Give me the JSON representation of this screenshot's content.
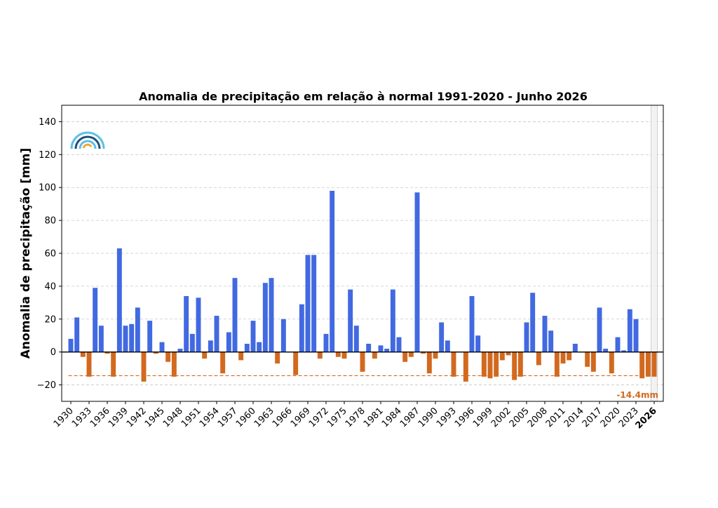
{
  "chart_data": {
    "type": "bar",
    "title": "Anomalia de precipitação em relação à normal 1991-2020 - Junho 2026",
    "ylabel": "Anomalia de precipitação [mm]",
    "xlabel": "",
    "ylim": [
      -30,
      150
    ],
    "yticks": [
      -20,
      0,
      20,
      40,
      60,
      80,
      100,
      120,
      140
    ],
    "xlim": [
      1928.5,
      2027.5
    ],
    "xticks": [
      1930,
      1933,
      1936,
      1939,
      1942,
      1945,
      1948,
      1951,
      1954,
      1957,
      1960,
      1963,
      1966,
      1969,
      1972,
      1975,
      1978,
      1981,
      1984,
      1987,
      1990,
      1993,
      1996,
      1999,
      2002,
      2005,
      2008,
      2011,
      2014,
      2017,
      2020,
      2023,
      2026
    ],
    "xtick_labels": [
      "1930",
      "1933",
      "1936",
      "1939",
      "1942",
      "1945",
      "1948",
      "1951",
      "1954",
      "1957",
      "1960",
      "1963",
      "1966",
      "1969",
      "1972",
      "1975",
      "1978",
      "1981",
      "1984",
      "1987",
      "1990",
      "1993",
      "1996",
      "1999",
      "2002",
      "2005",
      "2008",
      "2011",
      "2014",
      "2017",
      "2020",
      "2023",
      "2026"
    ],
    "highlight_tick": "2026",
    "grid": "y-dashed",
    "positive_color": "#4169e1",
    "negative_color": "#d2691e",
    "years": [
      1930,
      1931,
      1932,
      1933,
      1934,
      1935,
      1936,
      1937,
      1938,
      1939,
      1940,
      1941,
      1942,
      1943,
      1944,
      1945,
      1946,
      1947,
      1948,
      1949,
      1950,
      1951,
      1952,
      1953,
      1954,
      1955,
      1956,
      1957,
      1958,
      1959,
      1960,
      1961,
      1962,
      1963,
      1964,
      1965,
      1966,
      1967,
      1968,
      1969,
      1970,
      1971,
      1972,
      1973,
      1974,
      1975,
      1976,
      1977,
      1978,
      1979,
      1980,
      1981,
      1982,
      1983,
      1984,
      1985,
      1986,
      1987,
      1988,
      1989,
      1990,
      1991,
      1992,
      1993,
      1994,
      1995,
      1996,
      1997,
      1998,
      1999,
      2000,
      2001,
      2002,
      2003,
      2004,
      2005,
      2006,
      2007,
      2008,
      2009,
      2010,
      2011,
      2012,
      2013,
      2014,
      2015,
      2016,
      2017,
      2018,
      2019,
      2020,
      2021,
      2022,
      2023,
      2024,
      2025,
      2026
    ],
    "values": [
      8,
      21,
      -3,
      -15,
      39,
      16,
      -1,
      -15,
      63,
      16,
      17,
      27,
      -18,
      19,
      -1,
      6,
      -6,
      -15,
      2,
      34,
      11,
      33,
      -4,
      7,
      22,
      -13,
      12,
      45,
      -5,
      5,
      19,
      6,
      42,
      45,
      -7,
      20,
      0,
      -14,
      29,
      59,
      59,
      -4,
      11,
      98,
      -3,
      -4,
      38,
      16,
      -12,
      5,
      -4,
      4,
      2,
      38,
      9,
      -6,
      -3,
      97,
      -1,
      -13,
      -4,
      18,
      7,
      -15,
      0,
      -18,
      34,
      10,
      -15,
      -16,
      -15,
      -5,
      -2,
      -17,
      -15,
      18,
      36,
      -8,
      22,
      13,
      -15,
      -7,
      -5,
      5,
      0,
      -9,
      -12,
      27,
      2,
      -13,
      9,
      1,
      26,
      20,
      -16,
      -15,
      -15
    ],
    "reference_line": {
      "value": -14.4,
      "label": "-14.4mm"
    },
    "current_period": {
      "from": 2025.5,
      "to": 2026.5
    },
    "legend": "none"
  }
}
